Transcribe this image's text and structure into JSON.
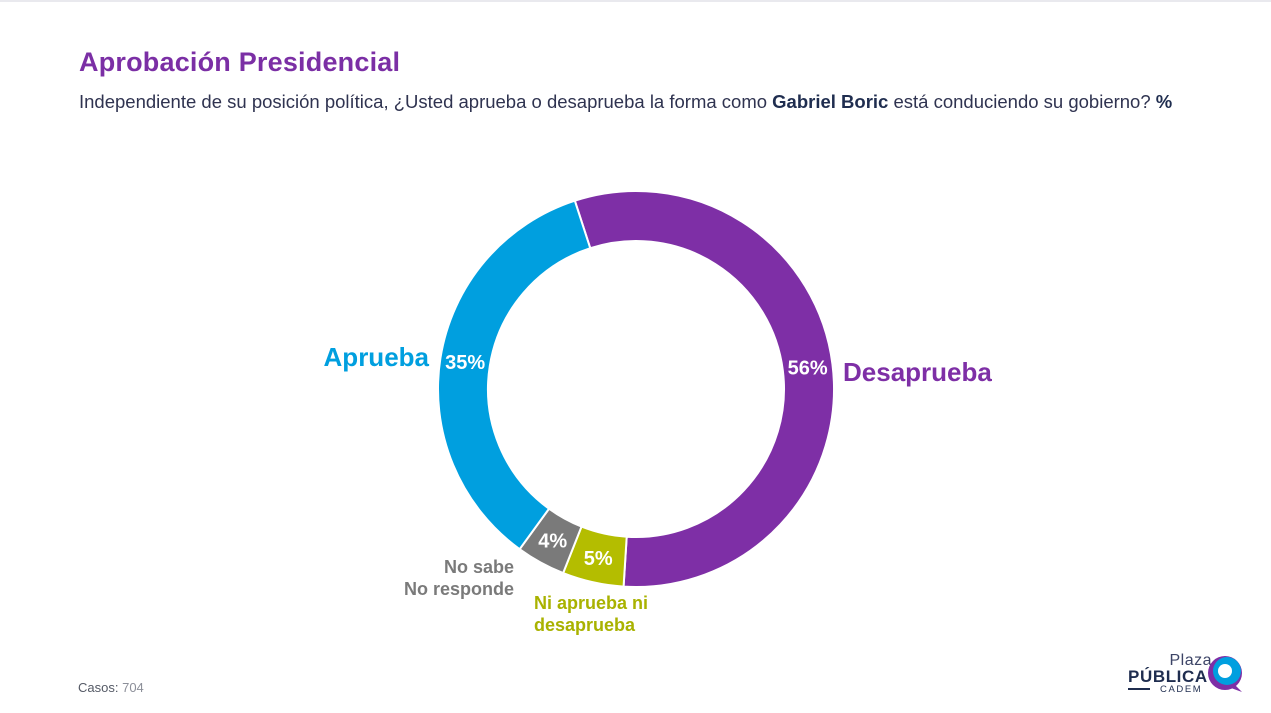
{
  "header": {
    "title": "Aprobación Presidencial",
    "subtitle_pre": "Independiente de su posición política, ¿Usted aprueba o desaprueba la forma como ",
    "subtitle_bold": "Gabriel Boric",
    "subtitle_post": " está conduciendo su gobierno? ",
    "subtitle_unit": "%"
  },
  "chart_data": {
    "type": "pie",
    "donut": true,
    "unit": "%",
    "slices": [
      {
        "name": "Desaprueba",
        "label_lines": [
          "Desaprueba"
        ],
        "value": 56,
        "value_label": "56%",
        "color": "#7e2fa6",
        "label_color": "#7e2fa6"
      },
      {
        "name": "Ni aprueba ni desaprueba",
        "label_lines": [
          "Ni aprueba ni",
          "desaprueba"
        ],
        "value": 5,
        "value_label": "5%",
        "color": "#b4bd00",
        "label_color": "#a9b200"
      },
      {
        "name": "No sabe No responde",
        "label_lines": [
          "No sabe",
          "No responde"
        ],
        "value": 4,
        "value_label": "4%",
        "color": "#7a7a7a",
        "label_color": "#7a7a7a"
      },
      {
        "name": "Aprueba",
        "label_lines": [
          "Aprueba"
        ],
        "value": 35,
        "value_label": "35%",
        "color": "#009fdf",
        "label_color": "#009fdf"
      }
    ]
  },
  "footer": {
    "cases_label": "Casos",
    "cases_value": "704"
  },
  "logo": {
    "line1": "Plaza",
    "line2": "PÚBLICA",
    "line3": "CADEM"
  }
}
